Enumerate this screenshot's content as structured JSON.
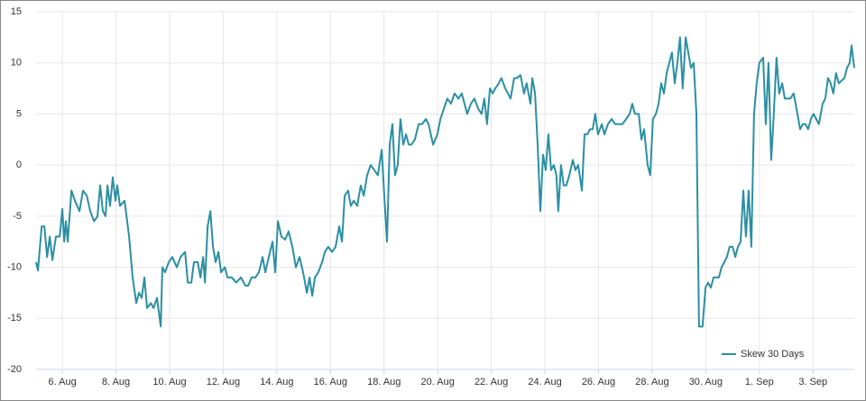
{
  "chart_data": {
    "type": "line",
    "x": [
      5.02,
      5.09,
      5.23,
      5.33,
      5.43,
      5.53,
      5.63,
      5.76,
      5.9,
      6.0,
      6.07,
      6.13,
      6.2,
      6.34,
      6.47,
      6.64,
      6.77,
      6.91,
      7.04,
      7.18,
      7.31,
      7.41,
      7.51,
      7.61,
      7.68,
      7.78,
      7.88,
      7.98,
      8.05,
      8.15,
      8.32,
      8.49,
      8.62,
      8.76,
      8.86,
      8.96,
      9.06,
      9.16,
      9.3,
      9.4,
      9.53,
      9.67,
      9.73,
      9.83,
      9.97,
      10.1,
      10.27,
      10.41,
      10.58,
      10.68,
      10.81,
      10.91,
      11.05,
      11.15,
      11.25,
      11.32,
      11.42,
      11.52,
      11.62,
      11.72,
      11.82,
      11.92,
      12.06,
      12.16,
      12.32,
      12.49,
      12.66,
      12.83,
      12.93,
      13.06,
      13.2,
      13.33,
      13.47,
      13.57,
      13.7,
      13.84,
      13.94,
      14.04,
      14.17,
      14.31,
      14.44,
      14.58,
      14.71,
      14.85,
      14.98,
      15.12,
      15.22,
      15.32,
      15.42,
      15.55,
      15.69,
      15.79,
      15.92,
      16.06,
      16.19,
      16.33,
      16.43,
      16.53,
      16.66,
      16.76,
      16.87,
      17.0,
      17.13,
      17.24,
      17.37,
      17.5,
      17.64,
      17.77,
      17.91,
      18.01,
      18.11,
      18.21,
      18.31,
      18.41,
      18.51,
      18.61,
      18.72,
      18.82,
      18.92,
      19.02,
      19.15,
      19.29,
      19.42,
      19.56,
      19.66,
      19.83,
      19.99,
      20.1,
      20.23,
      20.36,
      20.5,
      20.63,
      20.77,
      20.9,
      21.0,
      21.1,
      21.24,
      21.37,
      21.51,
      21.64,
      21.74,
      21.84,
      21.95,
      22.05,
      22.15,
      22.28,
      22.38,
      22.52,
      22.62,
      22.72,
      22.85,
      22.95,
      23.09,
      23.22,
      23.32,
      23.46,
      23.53,
      23.63,
      23.73,
      23.83,
      23.93,
      24.03,
      24.13,
      24.23,
      24.33,
      24.43,
      24.5,
      24.6,
      24.7,
      24.8,
      24.91,
      25.04,
      25.14,
      25.24,
      25.38,
      25.48,
      25.58,
      25.68,
      25.78,
      25.88,
      25.98,
      26.12,
      26.22,
      26.35,
      26.49,
      26.62,
      26.76,
      26.89,
      27.03,
      27.16,
      27.26,
      27.36,
      27.5,
      27.6,
      27.7,
      27.83,
      27.93,
      28.03,
      28.14,
      28.24,
      28.34,
      28.44,
      28.54,
      28.64,
      28.74,
      28.84,
      28.94,
      29.04,
      29.14,
      29.25,
      29.35,
      29.45,
      29.55,
      29.65,
      29.75,
      29.88,
      29.99,
      30.09,
      30.19,
      30.29,
      30.39,
      30.49,
      30.59,
      30.69,
      30.79,
      30.89,
      31.0,
      31.1,
      31.2,
      31.3,
      31.4,
      31.5,
      31.6,
      31.7,
      31.8,
      31.9,
      32.0,
      32.14,
      32.24,
      32.34,
      32.44,
      32.54,
      32.64,
      32.74,
      32.85,
      32.95,
      33.15,
      33.28,
      33.42,
      33.52,
      33.62,
      33.72,
      33.82,
      33.92,
      34.02,
      34.12,
      34.22,
      34.36,
      34.46,
      34.56,
      34.66,
      34.76,
      34.86,
      34.96,
      35.17,
      35.27,
      35.37,
      35.44,
      35.54
    ],
    "series": [
      {
        "name": "Skew 30 Days",
        "color": "#2b8fa3",
        "values": [
          -9.5,
          -10.3,
          -6,
          -6,
          -9,
          -7,
          -9.3,
          -7,
          -7,
          -4.3,
          -7.5,
          -5.5,
          -7.5,
          -2.5,
          -3.5,
          -4.5,
          -2.5,
          -3,
          -4.5,
          -5.5,
          -5,
          -2,
          -4.5,
          -5,
          -2,
          -4,
          -1.2,
          -3.5,
          -2,
          -4,
          -3.5,
          -7,
          -11,
          -13.5,
          -12.5,
          -13,
          -11,
          -14,
          -13.5,
          -14,
          -13,
          -15.8,
          -10,
          -10.5,
          -9.5,
          -9,
          -10,
          -9,
          -8.5,
          -11.5,
          -11.5,
          -9.5,
          -9.5,
          -11,
          -9,
          -11.5,
          -6,
          -4.5,
          -8,
          -9.5,
          -8.5,
          -10.5,
          -10,
          -11,
          -11,
          -11.5,
          -11,
          -11.8,
          -11.8,
          -11,
          -11,
          -10.5,
          -9,
          -10.5,
          -9,
          -7.5,
          -10.5,
          -5.5,
          -7,
          -7.3,
          -6.5,
          -8,
          -10,
          -9,
          -10.5,
          -12.5,
          -11,
          -12.8,
          -11,
          -10.5,
          -9.5,
          -8.5,
          -8,
          -8.5,
          -8,
          -6,
          -7.5,
          -3,
          -2.5,
          -4,
          -3.5,
          -4,
          -2,
          -3,
          -1,
          0,
          -0.5,
          -1,
          1.5,
          -3,
          -7.5,
          2,
          4,
          -1,
          0,
          4.5,
          2,
          3,
          2,
          2,
          2.5,
          4,
          4,
          4.5,
          4,
          2,
          3,
          4.5,
          5.5,
          6.5,
          6,
          7,
          6.5,
          7,
          6,
          5,
          6,
          6.5,
          5.5,
          5,
          6.5,
          4,
          7.5,
          7,
          7.5,
          8,
          8.5,
          7.5,
          7,
          6.5,
          8.5,
          8.5,
          8.8,
          7,
          8,
          6,
          8.5,
          7,
          2,
          -4.5,
          1,
          -0.5,
          3,
          -0.5,
          0,
          -1,
          -4.5,
          0,
          -2,
          -2,
          -1,
          0.5,
          -0.5,
          0,
          -2.5,
          3,
          3,
          3.5,
          3.5,
          5,
          3,
          4,
          3,
          4,
          4.5,
          4,
          4,
          4,
          4.5,
          5,
          6,
          5,
          5,
          2.5,
          3.5,
          0,
          -1,
          4.5,
          5,
          6,
          8,
          7,
          9,
          10,
          11,
          8,
          10,
          12.5,
          7.5,
          12.5,
          11,
          9.5,
          10,
          5,
          -15.8,
          -15.8,
          -12,
          -11.5,
          -12,
          -11,
          -11,
          -11,
          -10,
          -9.5,
          -9,
          -8,
          -8,
          -9,
          -8,
          -7.5,
          -2.5,
          -7,
          -2.5,
          -8,
          5,
          8,
          10,
          10.5,
          4,
          10,
          0.5,
          5,
          10.5,
          7,
          8,
          6.5,
          6.5,
          7,
          5,
          3.5,
          4,
          4,
          3.5,
          4.5,
          5,
          4.5,
          4,
          6,
          6.5,
          8.5,
          8,
          7,
          9,
          8,
          8.5,
          9.5,
          10,
          11.7,
          9.5
        ]
      }
    ],
    "xlim": [
      5.02,
      35.54
    ],
    "xticks": [
      {
        "value": 6,
        "label": "6. Aug"
      },
      {
        "value": 8,
        "label": "8. Aug"
      },
      {
        "value": 10,
        "label": "10. Aug"
      },
      {
        "value": 12,
        "label": "12. Aug"
      },
      {
        "value": 14,
        "label": "14. Aug"
      },
      {
        "value": 16,
        "label": "16. Aug"
      },
      {
        "value": 18,
        "label": "18. Aug"
      },
      {
        "value": 20,
        "label": "20. Aug"
      },
      {
        "value": 22,
        "label": "22. Aug"
      },
      {
        "value": 24,
        "label": "24. Aug"
      },
      {
        "value": 26,
        "label": "26. Aug"
      },
      {
        "value": 28,
        "label": "28. Aug"
      },
      {
        "value": 30,
        "label": "30. Aug"
      },
      {
        "value": 32,
        "label": "1. Sep"
      },
      {
        "value": 34,
        "label": "3. Sep"
      }
    ],
    "ylim": [
      -20,
      15
    ],
    "yticks": [
      -20,
      -15,
      -10,
      -5,
      0,
      5,
      10,
      15
    ],
    "grid": true,
    "legend": "lower right"
  }
}
